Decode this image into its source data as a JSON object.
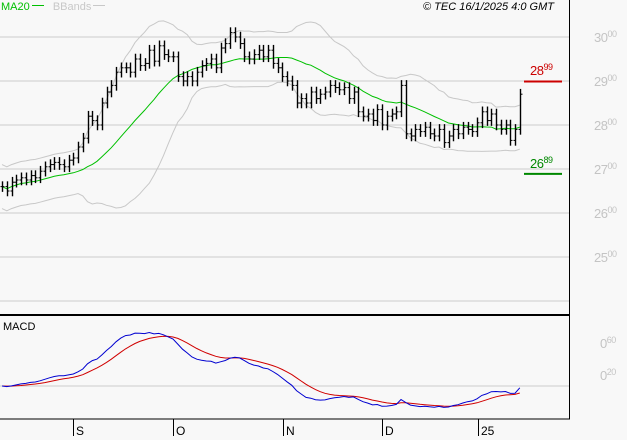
{
  "header": {
    "legend": [
      {
        "label": "MA20",
        "color": "#00c000"
      },
      {
        "label": "BBands",
        "color": "#c8c8c8"
      }
    ],
    "copyright": "© TEC 16/1/2025 4:0 GMT"
  },
  "colors": {
    "bars": "#000000",
    "ma20": "#00c000",
    "bbands": "#c8c8c8",
    "macd": "#0000d0",
    "signal": "#d00000",
    "resistance": "#cc0000",
    "support": "#008800",
    "grid": "#cccccc"
  },
  "chart_data": [
    {
      "type": "ohlc-bar",
      "panel": "price",
      "x_ticks": [
        "S",
        "O",
        "N",
        "D",
        "25"
      ],
      "y_ticks": [
        {
          "int": "30",
          "dec": "00",
          "value": 30.0
        },
        {
          "int": "29",
          "dec": "00",
          "value": 29.0
        },
        {
          "int": "28",
          "dec": "00",
          "value": 28.0
        },
        {
          "int": "27",
          "dec": "00",
          "value": 27.0
        },
        {
          "int": "26",
          "dec": "00",
          "value": 26.0
        },
        {
          "int": "25",
          "dec": "00",
          "value": 25.0
        }
      ],
      "ylim": [
        23.95,
        30.5
      ],
      "grid": true,
      "overlays": [
        "MA20",
        "BBands"
      ],
      "close": [
        26.6,
        26.5,
        26.7,
        26.75,
        26.8,
        26.75,
        26.85,
        26.8,
        26.95,
        27.05,
        27.1,
        27.15,
        27.1,
        27.05,
        27.2,
        27.25,
        27.5,
        27.7,
        28.2,
        28.1,
        28.0,
        28.5,
        28.75,
        28.9,
        29.2,
        29.3,
        29.3,
        29.2,
        29.5,
        29.35,
        29.4,
        29.7,
        29.45,
        29.8,
        29.6,
        29.55,
        29.55,
        29.1,
        29.0,
        29.1,
        29.0,
        29.2,
        29.35,
        29.4,
        29.5,
        29.3,
        29.75,
        29.85,
        30.1,
        30.0,
        29.85,
        29.55,
        29.5,
        29.6,
        29.7,
        29.55,
        29.7,
        29.4,
        29.3,
        29.1,
        29.0,
        28.9,
        28.5,
        28.6,
        28.5,
        28.75,
        28.6,
        28.7,
        28.75,
        28.9,
        28.85,
        28.8,
        28.85,
        28.6,
        28.75,
        28.3,
        28.2,
        28.25,
        28.1,
        28.35,
        28.0,
        28.2,
        28.25,
        28.3,
        28.9,
        27.8,
        27.75,
        27.9,
        27.85,
        27.95,
        27.8,
        27.75,
        27.9,
        27.6,
        27.75,
        27.9,
        27.8,
        27.95,
        27.9,
        27.85,
        28.05,
        28.3,
        28.1,
        28.25,
        28.0,
        27.9,
        28.0,
        27.65,
        27.9,
        28.7
      ],
      "levels": [
        {
          "label_int": "28",
          "label_dec": "99",
          "value": 28.99,
          "kind": "resistance"
        },
        {
          "label_int": "26",
          "label_dec": "89",
          "value": 26.89,
          "kind": "support"
        }
      ]
    },
    {
      "type": "line",
      "panel": "MACD",
      "title": "MACD",
      "y_ticks": [
        {
          "int": "0",
          "dec": "60",
          "value": 0.6
        },
        {
          "int": "0",
          "dec": "20",
          "value": 0.2
        }
      ],
      "series": [
        "macd",
        "signal"
      ]
    }
  ]
}
